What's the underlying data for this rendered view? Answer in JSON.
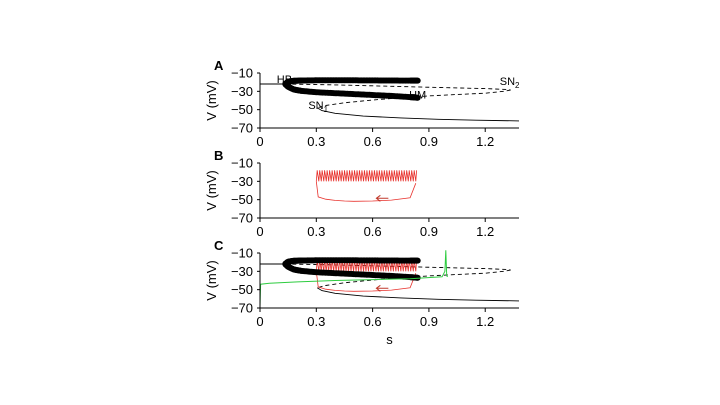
{
  "figure": {
    "xlabel": "s",
    "ylabel": "V (mV)",
    "xticks": [
      0,
      0.3,
      0.6,
      0.9,
      1.2
    ],
    "xtick_labels": [
      "0",
      "0.3",
      "0.6",
      "0.9",
      "1.2"
    ],
    "yticks": [
      -10,
      -30,
      -50,
      -70
    ],
    "ytick_labels": [
      "−10",
      "−30",
      "−50",
      "−70"
    ],
    "xlim": [
      0,
      1.38
    ],
    "ylim": [
      -70,
      -10
    ]
  },
  "chart_data": [
    {
      "panel": "A",
      "type": "line",
      "title": "",
      "xlabel": "",
      "ylabel": "V (mV)",
      "xlim": [
        0,
        1.38
      ],
      "ylim": [
        -70,
        -10
      ],
      "annotations": [
        {
          "text": "HB",
          "sub": "",
          "x": 0.13,
          "y": -21
        },
        {
          "text": "SN",
          "sub": "2",
          "x": 1.33,
          "y": -23
        },
        {
          "text": "SN",
          "sub": "1",
          "x": 0.31,
          "y": -49
        },
        {
          "text": "HM",
          "sub": "",
          "x": 0.84,
          "y": -38
        }
      ],
      "series": [
        {
          "role": "stable-upper-equilibrium",
          "style": "solid",
          "color": "#000000",
          "x": [
            0,
            0.135
          ],
          "y": [
            -22,
            -22
          ]
        },
        {
          "role": "unstable-upper-equilibrium",
          "style": "dashed",
          "color": "#000000",
          "x": [
            0.135,
            0.4,
            0.7,
            1.0,
            1.2,
            1.32,
            1.335
          ],
          "y": [
            -22,
            -23,
            -24.5,
            -26,
            -27,
            -28,
            -28.5
          ]
        },
        {
          "role": "unstable-middle-equilibrium",
          "style": "dashed",
          "color": "#000000",
          "x": [
            1.335,
            1.3,
            1.2,
            1.05,
            0.9,
            0.75,
            0.6,
            0.45,
            0.35,
            0.305
          ],
          "y": [
            -28.5,
            -30,
            -32,
            -33.5,
            -35,
            -37,
            -39.5,
            -42.5,
            -45.5,
            -48
          ]
        },
        {
          "role": "stable-lower-equilibrium",
          "style": "solid",
          "color": "#000000",
          "x": [
            0.305,
            0.33,
            0.4,
            0.55,
            0.75,
            0.95,
            1.15,
            1.38
          ],
          "y": [
            -48,
            -51,
            -54,
            -57,
            -59,
            -60.5,
            -61.5,
            -62.2
          ]
        },
        {
          "role": "periodic-orbit-max",
          "style": "dots",
          "color": "#000000",
          "x": [
            0.135,
            0.15,
            0.18,
            0.22,
            0.3,
            0.4,
            0.5,
            0.6,
            0.7,
            0.8,
            0.84
          ],
          "y": [
            -22,
            -19.5,
            -18.5,
            -18.2,
            -18,
            -18,
            -18,
            -18.1,
            -18.2,
            -18.3,
            -18.3
          ]
        },
        {
          "role": "periodic-orbit-min",
          "style": "dots",
          "color": "#000000",
          "x": [
            0.135,
            0.15,
            0.18,
            0.22,
            0.3,
            0.4,
            0.5,
            0.6,
            0.7,
            0.8,
            0.84
          ],
          "y": [
            -22,
            -25,
            -28,
            -29.5,
            -31,
            -32,
            -33,
            -34,
            -35,
            -36.3,
            -37
          ]
        }
      ]
    },
    {
      "panel": "B",
      "type": "line",
      "title": "",
      "xlabel": "",
      "ylabel": "V (mV)",
      "xlim": [
        0,
        1.38
      ],
      "ylim": [
        -70,
        -10
      ],
      "series": [
        {
          "role": "burst-trajectory-spikes",
          "style": "spikes",
          "color": "#e8322d",
          "x_start": 0.3,
          "x_end": 0.83,
          "spike_count": 40,
          "spike_top": -18,
          "spike_bottom": -30
        },
        {
          "role": "burst-trajectory-return",
          "style": "solid",
          "color": "#e8322d",
          "x": [
            0.83,
            0.8,
            0.7,
            0.6,
            0.5,
            0.45,
            0.4,
            0.35,
            0.31,
            0.3
          ],
          "y": [
            -32,
            -48,
            -50.5,
            -51.5,
            -51.8,
            -51.5,
            -50.8,
            -49.5,
            -47,
            -30
          ]
        }
      ]
    },
    {
      "panel": "C",
      "type": "line",
      "title": "",
      "xlabel": "s",
      "ylabel": "V (mV)",
      "xlim": [
        0,
        1.38
      ],
      "ylim": [
        -70,
        -10
      ],
      "series": [
        {
          "role": "green-trajectory",
          "style": "solid",
          "color": "#2ecc40",
          "x": [
            0,
            0.003,
            0.05,
            0.2,
            0.4,
            0.6,
            0.8,
            0.97,
            0.985,
            0.99,
            0.995,
            1.0
          ],
          "y": [
            -68,
            -44,
            -43,
            -41.5,
            -40,
            -39,
            -38,
            -36,
            -30,
            -7,
            -35,
            -36
          ]
        }
      ]
    }
  ]
}
